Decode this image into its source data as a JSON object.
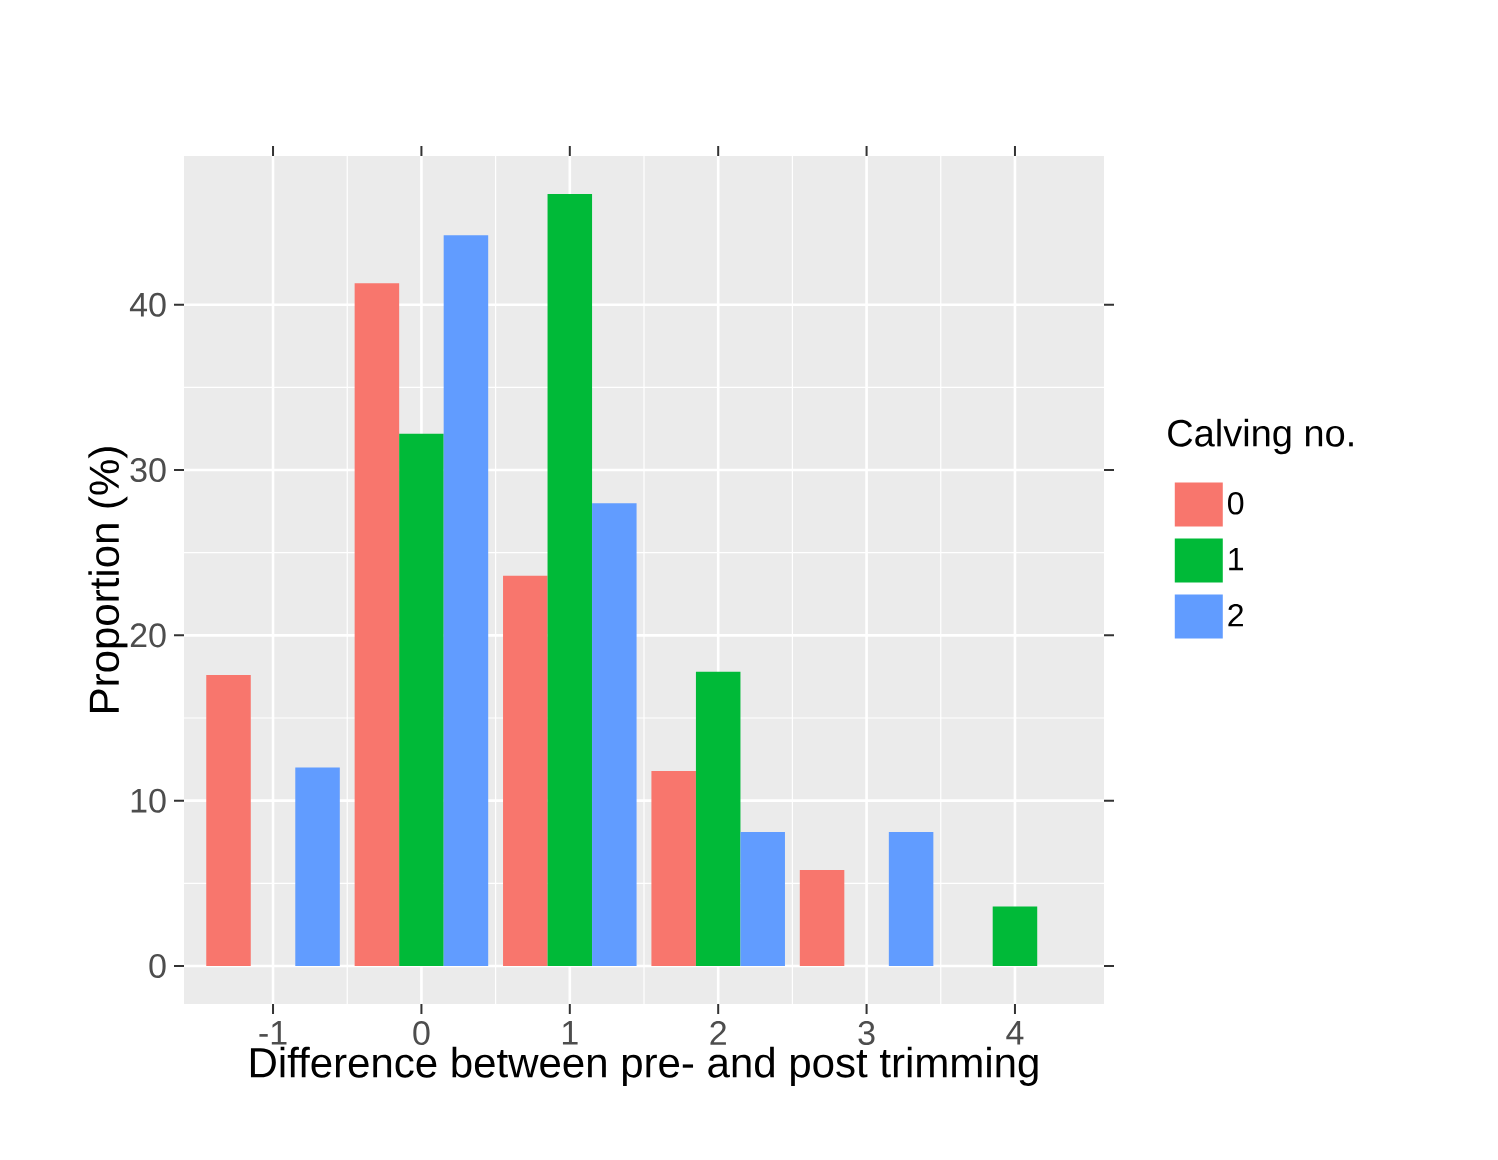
{
  "chart_data": {
    "type": "bar",
    "xlabel": "Difference between pre- and post trimming",
    "ylabel": "Proportion (%)",
    "legend_title": "Calving no.",
    "categories": [
      "-1",
      "0",
      "1",
      "2",
      "3",
      "4"
    ],
    "series": [
      {
        "name": "0",
        "color": "#f8766d",
        "values": [
          17.6,
          41.3,
          23.6,
          11.8,
          5.8,
          null
        ]
      },
      {
        "name": "1",
        "color": "#00ba38",
        "values": [
          null,
          32.2,
          46.7,
          17.8,
          null,
          3.6
        ]
      },
      {
        "name": "2",
        "color": "#619cff",
        "values": [
          12.0,
          44.2,
          28.0,
          8.1,
          8.1,
          null
        ]
      }
    ],
    "ylim": [
      -2.3,
      49.0
    ],
    "yticks": [
      0,
      10,
      20,
      30,
      40
    ],
    "grid": true,
    "legend": "right"
  }
}
